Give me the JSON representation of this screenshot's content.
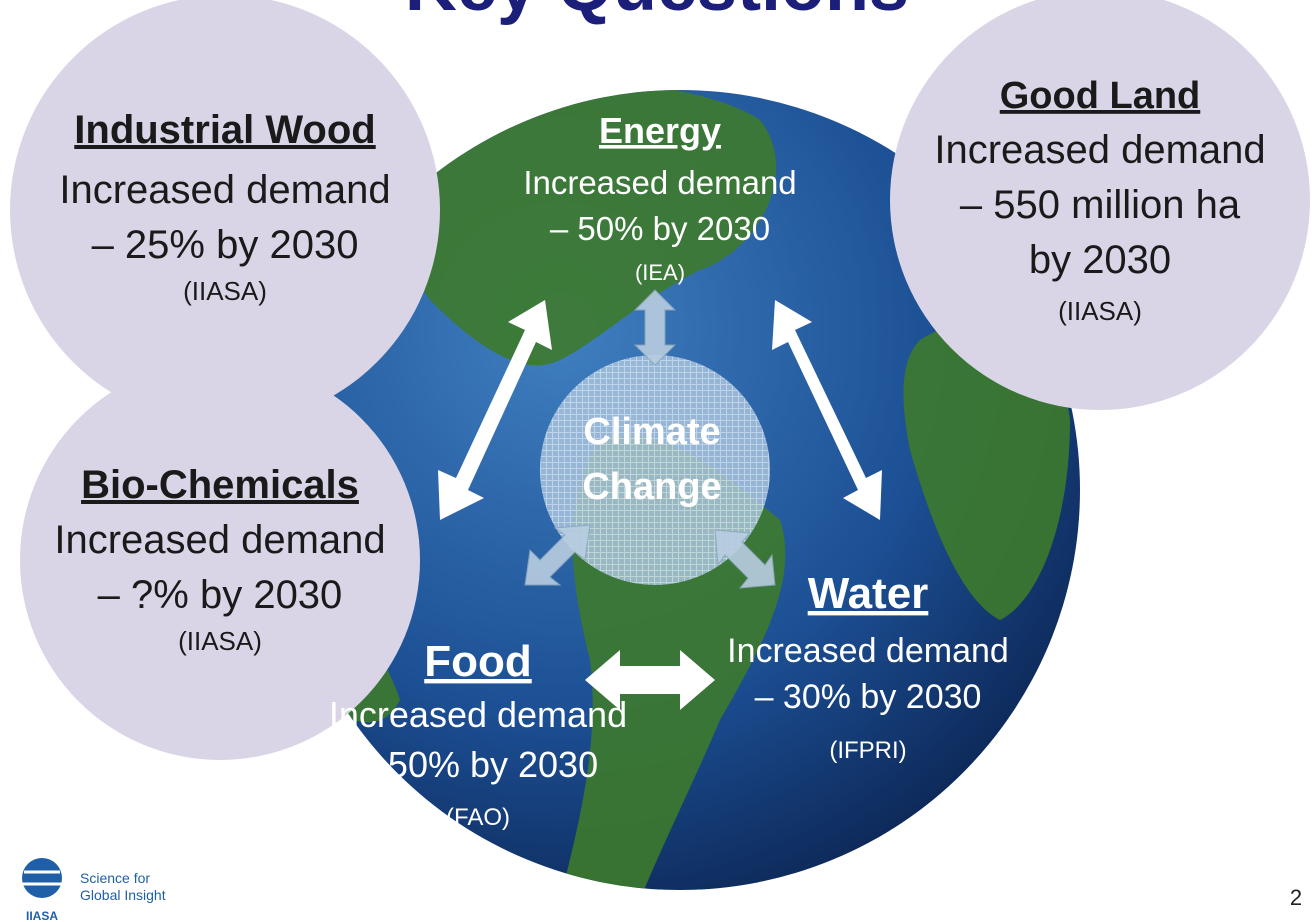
{
  "title": "Key Questions",
  "nodes": [
    {
      "heading": "Industrial Wood",
      "lines": [
        "Increased demand",
        "– 25% by 2030"
      ],
      "source": "(IIASA)"
    },
    {
      "heading": "Energy",
      "lines": [
        "Increased demand",
        "– 50% by 2030"
      ],
      "source": "(IEA)"
    },
    {
      "heading": "Good Land",
      "lines": [
        "Increased demand",
        "– 550 million ha",
        "by 2030"
      ],
      "source": "(IIASA)"
    },
    {
      "heading": "Bio-Chemicals",
      "lines": [
        "Increased demand",
        "– ?% by 2030"
      ],
      "source": "(IIASA)"
    },
    {
      "heading": "Food",
      "lines": [
        "Increased demand",
        "– 50% by 2030"
      ],
      "source": "(FAO)"
    },
    {
      "heading": "Water",
      "lines": [
        "Increased demand",
        "– 30% by 2030"
      ],
      "source": "(IFPRI)"
    }
  ],
  "center": {
    "lines": [
      "Climate",
      "Change"
    ]
  },
  "footer": {
    "logo_lines": [
      "Science for",
      "Global Insight"
    ],
    "logo_mark": "IIASA",
    "page_number": "2"
  }
}
